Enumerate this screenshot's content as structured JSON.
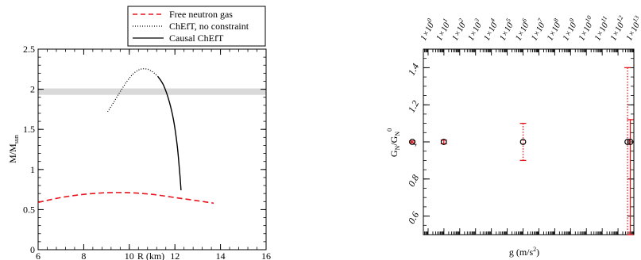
{
  "chart_data": [
    {
      "type": "line",
      "xlabel": "R (km)",
      "ylabel_main": "M/M",
      "ylabel_sub": "sun",
      "xlim": [
        6,
        16
      ],
      "ylim": [
        0,
        2.5
      ],
      "xticks": [
        6,
        8,
        10,
        12,
        14,
        16
      ],
      "yticks": [
        0,
        0.5,
        1,
        1.5,
        2,
        2.5
      ],
      "xtick_labels": [
        "6",
        "8",
        "10",
        "12",
        "14",
        "16"
      ],
      "ytick_labels": [
        "0",
        "0.5",
        "1",
        "1.5",
        "2",
        "2.5"
      ],
      "band": {
        "y0": 1.93,
        "y1": 2.01,
        "color": "#d9d9d9"
      },
      "legend_position": "top-right, outside plot",
      "series": [
        {
          "name": "Free neutron gas",
          "style": "dashed",
          "color": "#e8141c",
          "points": [
            [
              6.0,
              0.59
            ],
            [
              7.0,
              0.65
            ],
            [
              8.0,
              0.69
            ],
            [
              9.0,
              0.71
            ],
            [
              10.0,
              0.71
            ],
            [
              11.0,
              0.69
            ],
            [
              12.0,
              0.65
            ],
            [
              13.0,
              0.61
            ],
            [
              13.7,
              0.58
            ]
          ]
        },
        {
          "name": "ChEfT, no constraint",
          "style": "dotted",
          "color": "#000000",
          "points": [
            [
              9.05,
              1.72
            ],
            [
              9.3,
              1.83
            ],
            [
              9.6,
              1.97
            ],
            [
              9.9,
              2.1
            ],
            [
              10.2,
              2.2
            ],
            [
              10.5,
              2.25
            ],
            [
              10.8,
              2.25
            ],
            [
              11.05,
              2.21
            ],
            [
              11.25,
              2.16
            ]
          ]
        },
        {
          "name": "Causal ChEfT",
          "style": "solid",
          "color": "#000000",
          "points": [
            [
              11.25,
              2.16
            ],
            [
              11.5,
              2.05
            ],
            [
              11.75,
              1.85
            ],
            [
              11.95,
              1.6
            ],
            [
              12.1,
              1.3
            ],
            [
              12.2,
              1.0
            ],
            [
              12.27,
              0.74
            ]
          ]
        }
      ]
    },
    {
      "type": "scatter",
      "xlabel": "g (m/s",
      "xlabel_sup": "2",
      "xlabel_end": ")",
      "ylabel_main": "G",
      "ylabel_sub": "N",
      "ylabel_mid": "/G",
      "ylabel_sub2": "N",
      "ylabel_sup2": "0",
      "x_scale": "log",
      "xlim_exp": [
        -0.3,
        13.0
      ],
      "ylim": [
        0.5,
        1.5
      ],
      "yticks": [
        0.6,
        0.8,
        1,
        1.2,
        1.4
      ],
      "ytick_labels": [
        "0.6",
        "0.8",
        "1",
        "1.2",
        "1.4"
      ],
      "top_tick_labels": [
        {
          "mant": "1×10",
          "exp": "0"
        },
        {
          "mant": "1×10",
          "exp": "1"
        },
        {
          "mant": "1×10",
          "exp": "2"
        },
        {
          "mant": "1×10",
          "exp": "3"
        },
        {
          "mant": "1×10",
          "exp": "4"
        },
        {
          "mant": "1×10",
          "exp": "5"
        },
        {
          "mant": "1×10",
          "exp": "6"
        },
        {
          "mant": "1×10",
          "exp": "7"
        },
        {
          "mant": "1×10",
          "exp": "8"
        },
        {
          "mant": "1×10",
          "exp": "9"
        },
        {
          "mant": "1×10",
          "exp": "10"
        },
        {
          "mant": "1×10",
          "exp": "11"
        },
        {
          "mant": "1×10",
          "exp": "12"
        },
        {
          "mant": "1×10",
          "exp": "13"
        }
      ],
      "points": [
        {
          "g": 0.1,
          "value": 1.0,
          "err_lo": 0.005,
          "err_hi": 0.005,
          "err_style": "solid"
        },
        {
          "g": 9.8,
          "value": 1.0,
          "err_lo": 0.01,
          "err_hi": 0.01,
          "err_style": "solid"
        },
        {
          "g": 1000000.0,
          "value": 1.0,
          "err_lo": 0.1,
          "err_hi": 0.1,
          "err_style": "dotted"
        },
        {
          "g": 4000000000000.0,
          "value": 1.0,
          "err_lo": 1.0,
          "err_hi": 0.4,
          "err_style": "dotted"
        },
        {
          "g": 6000000000000.0,
          "value": 1.0,
          "err_lo": 0.5,
          "err_hi": 0.12,
          "err_style": "solid"
        }
      ],
      "marker_color": "#000000",
      "errorbar_color": "#e8141c"
    }
  ]
}
